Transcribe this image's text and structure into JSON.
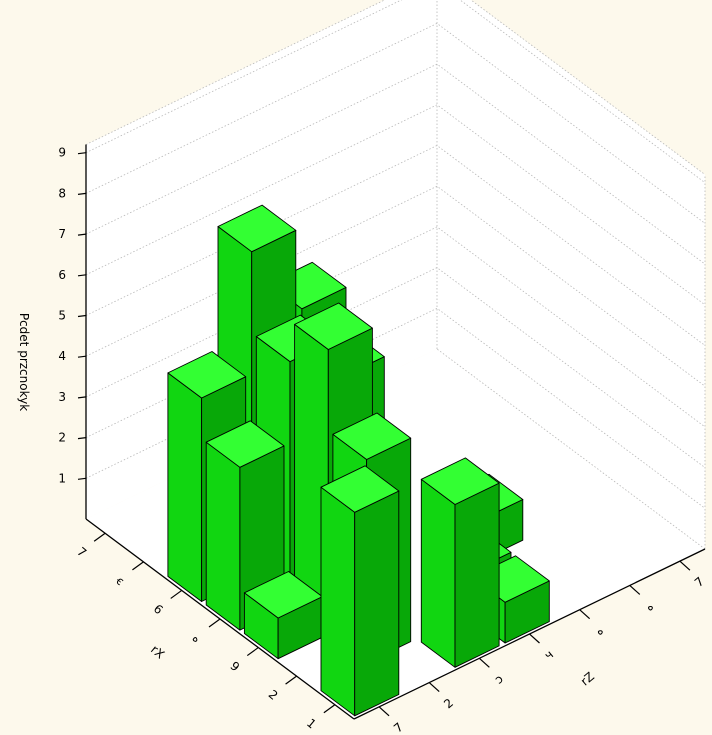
{
  "chart_data": {
    "type": "bar3d",
    "ylabel": "Pcdet przcnokyk",
    "xlabel": "rX",
    "zlabel": "rZ",
    "yticks": [
      "1",
      "2",
      "3",
      "4",
      "5",
      "6",
      "7",
      "8",
      "9"
    ],
    "xticks": [
      "1",
      "2",
      "9",
      "ه",
      "6",
      "ꞓ",
      "7"
    ],
    "zticks": [
      "7",
      "2",
      "ɔ",
      "ч",
      "ه",
      "ه",
      "7"
    ],
    "ylim": [
      0,
      9
    ],
    "grid": true,
    "bar_color": "#22dd22",
    "bars": [
      {
        "x": 1,
        "z": 1,
        "value": 5
      },
      {
        "x": 1,
        "z": 3,
        "value": 4
      },
      {
        "x": 1,
        "z": 4,
        "value": 1
      },
      {
        "x": 2,
        "z": 2,
        "value": 5
      },
      {
        "x": 2,
        "z": 4,
        "value": 1
      },
      {
        "x": 3,
        "z": 1,
        "value": 1
      },
      {
        "x": 3,
        "z": 2,
        "value": 7
      },
      {
        "x": 3,
        "z": 5,
        "value": 1
      },
      {
        "x": 4,
        "z": 1,
        "value": 4
      },
      {
        "x": 4,
        "z": 2,
        "value": 6
      },
      {
        "x": 4,
        "z": 3,
        "value": 5
      },
      {
        "x": 5,
        "z": 1,
        "value": 5
      },
      {
        "x": 5,
        "z": 2,
        "value": 8
      },
      {
        "x": 5,
        "z": 3,
        "value": 6
      }
    ]
  }
}
